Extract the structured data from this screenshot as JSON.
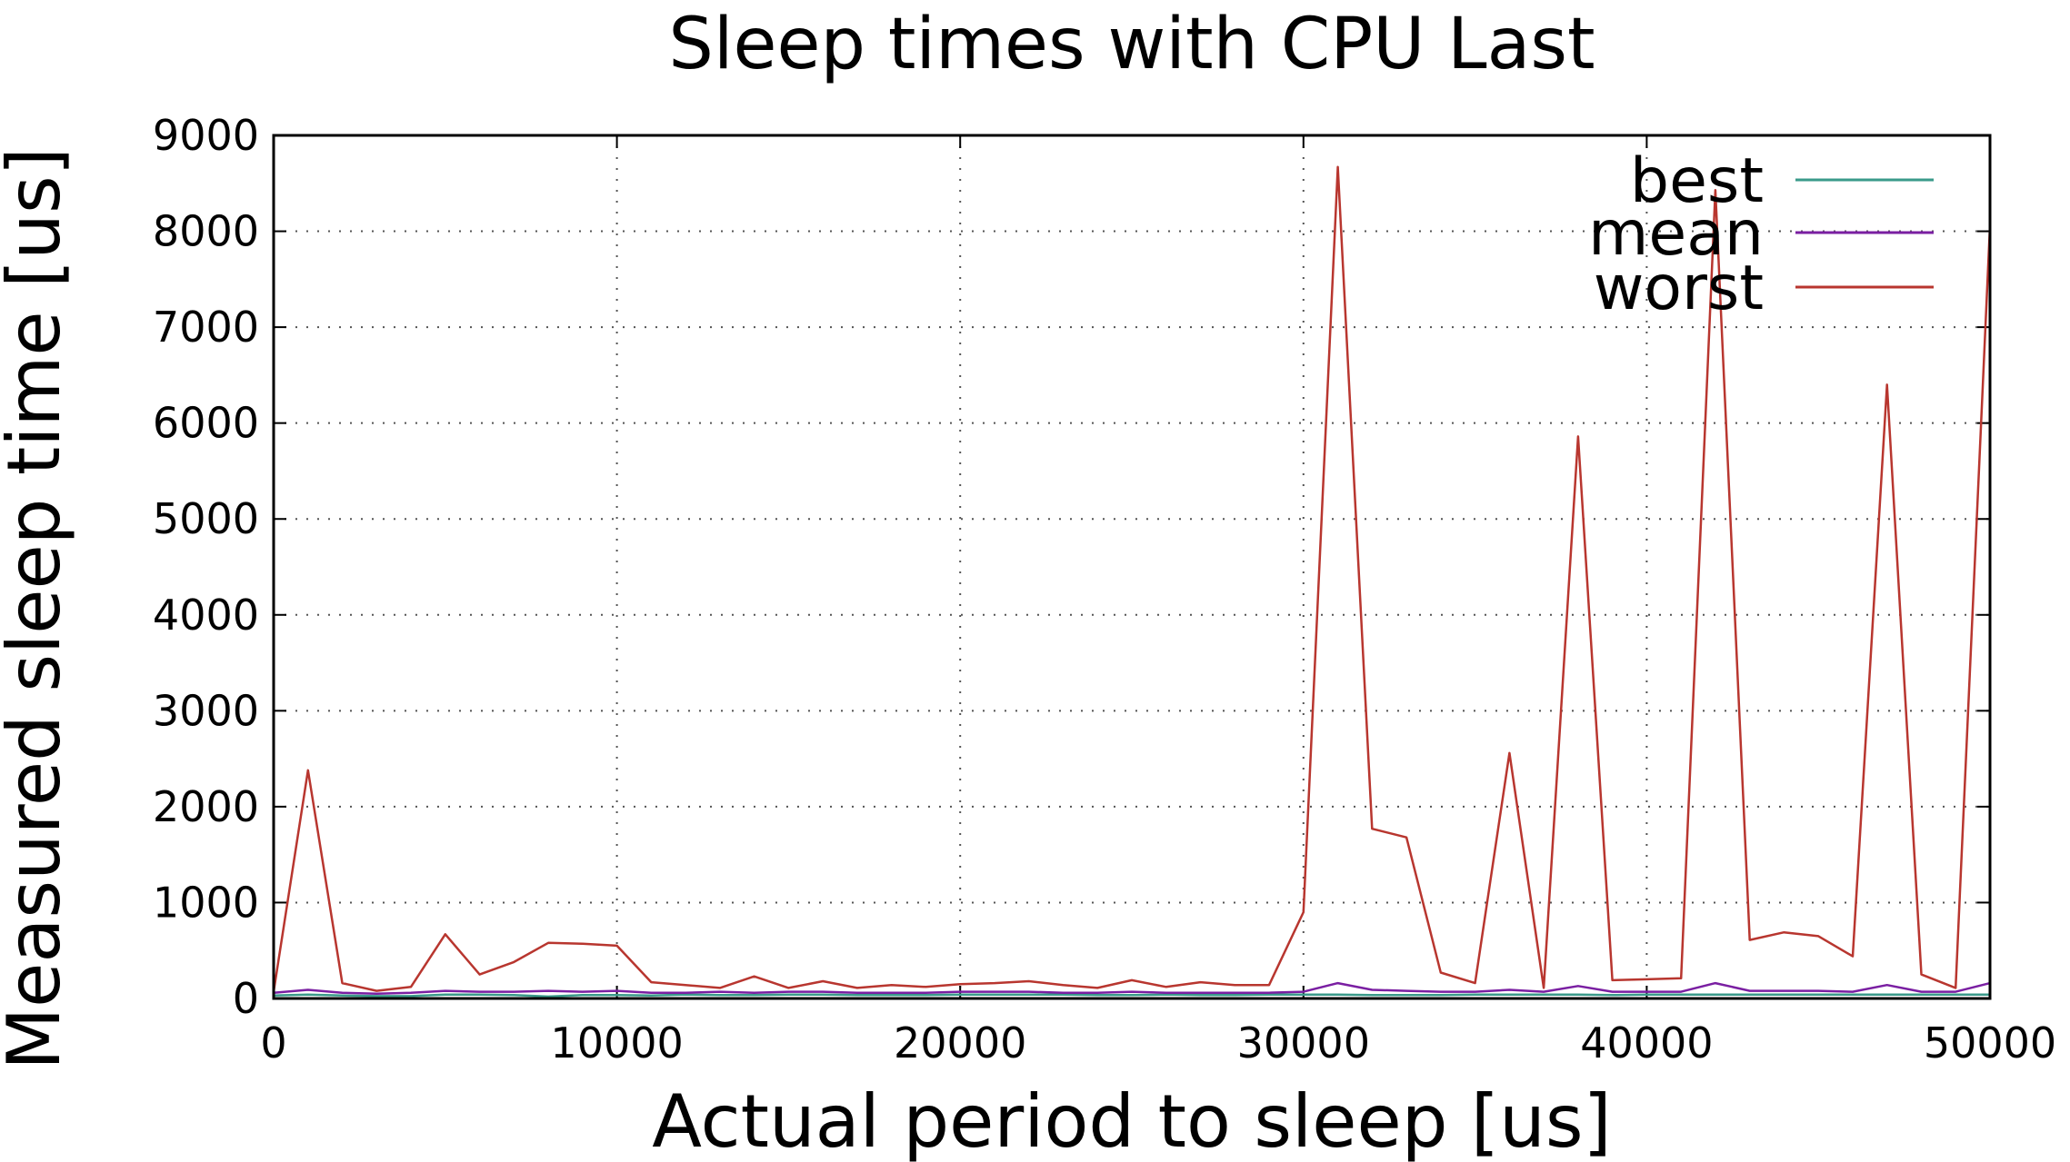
{
  "chart_data": {
    "type": "line",
    "title": "Sleep times with CPU Last",
    "xlabel": "Actual period to sleep  [us]",
    "ylabel": "Measured sleep time  [us]",
    "xlim": [
      0,
      50000
    ],
    "ylim": [
      0,
      9000
    ],
    "xticks": [
      0,
      10000,
      20000,
      30000,
      40000,
      50000
    ],
    "yticks": [
      0,
      1000,
      2000,
      3000,
      4000,
      5000,
      6000,
      7000,
      8000,
      9000
    ],
    "grid": true,
    "legend_position": "top-right",
    "x": [
      0,
      1000,
      2000,
      3000,
      4000,
      5000,
      6000,
      7000,
      8000,
      9000,
      10000,
      11000,
      12000,
      13000,
      14000,
      15000,
      16000,
      17000,
      18000,
      19000,
      20000,
      21000,
      22000,
      23000,
      24000,
      25000,
      26000,
      27000,
      28000,
      29000,
      30000,
      31000,
      32000,
      33000,
      34000,
      35000,
      36000,
      37000,
      38000,
      39000,
      40000,
      41000,
      42000,
      43000,
      44000,
      45000,
      46000,
      47000,
      48000,
      49000,
      50000
    ],
    "series": [
      {
        "name": "best",
        "color": "#3a9a8a",
        "values": [
          30,
          40,
          30,
          25,
          25,
          40,
          40,
          35,
          20,
          35,
          35,
          30,
          40,
          35,
          35,
          40,
          40,
          35,
          35,
          35,
          40,
          40,
          40,
          40,
          35,
          35,
          40,
          35,
          35,
          40,
          40,
          40,
          35,
          35,
          35,
          40,
          40,
          40,
          40,
          35,
          40,
          40,
          40,
          40,
          40,
          40,
          40,
          40,
          40,
          40,
          40
        ]
      },
      {
        "name": "mean",
        "color": "#7a1fa2",
        "values": [
          60,
          90,
          60,
          50,
          60,
          80,
          70,
          70,
          80,
          70,
          80,
          60,
          60,
          70,
          60,
          70,
          70,
          60,
          60,
          60,
          70,
          70,
          70,
          60,
          60,
          70,
          60,
          60,
          60,
          60,
          70,
          160,
          90,
          80,
          70,
          70,
          90,
          70,
          130,
          70,
          70,
          70,
          160,
          80,
          80,
          80,
          70,
          140,
          70,
          70,
          160
        ]
      },
      {
        "name": "worst",
        "color": "#b8362f",
        "values": [
          70,
          2380,
          160,
          80,
          120,
          670,
          250,
          380,
          580,
          570,
          550,
          170,
          140,
          110,
          230,
          110,
          180,
          110,
          140,
          120,
          150,
          160,
          180,
          140,
          110,
          190,
          120,
          170,
          140,
          140,
          900,
          8670,
          1770,
          1680,
          270,
          160,
          2560,
          110,
          5860,
          190,
          200,
          210,
          8430,
          610,
          690,
          650,
          440,
          6400,
          250,
          110,
          8060
        ]
      }
    ]
  }
}
